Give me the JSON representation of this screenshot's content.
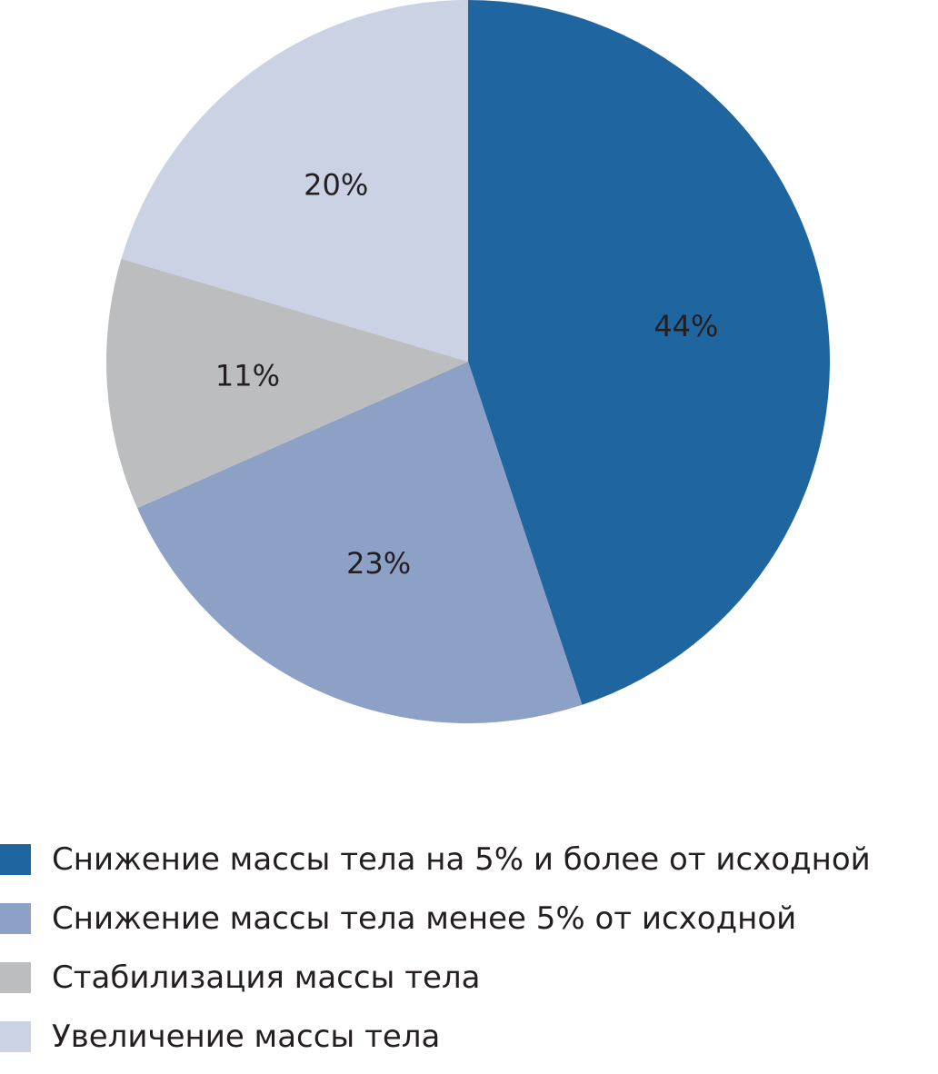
{
  "chart_data": {
    "type": "pie",
    "title": "",
    "slices": [
      {
        "label": "Снижение массы тела на 5% и более от исходной",
        "value": 44,
        "display": "44%",
        "color": "#1f65a0"
      },
      {
        "label": "Снижение массы тела менее 5% от исходной",
        "value": 23,
        "display": "23%",
        "color": "#8da0c6"
      },
      {
        "label": "Стабилизация массы тела",
        "value": 11,
        "display": "11%",
        "color": "#bcbdbf"
      },
      {
        "label": "Увеличение массы тела",
        "value": 20,
        "display": "20%",
        "color": "#cbd2e4"
      }
    ],
    "start_angle": "12 o'clock",
    "direction": "clockwise",
    "legend_position": "bottom"
  }
}
